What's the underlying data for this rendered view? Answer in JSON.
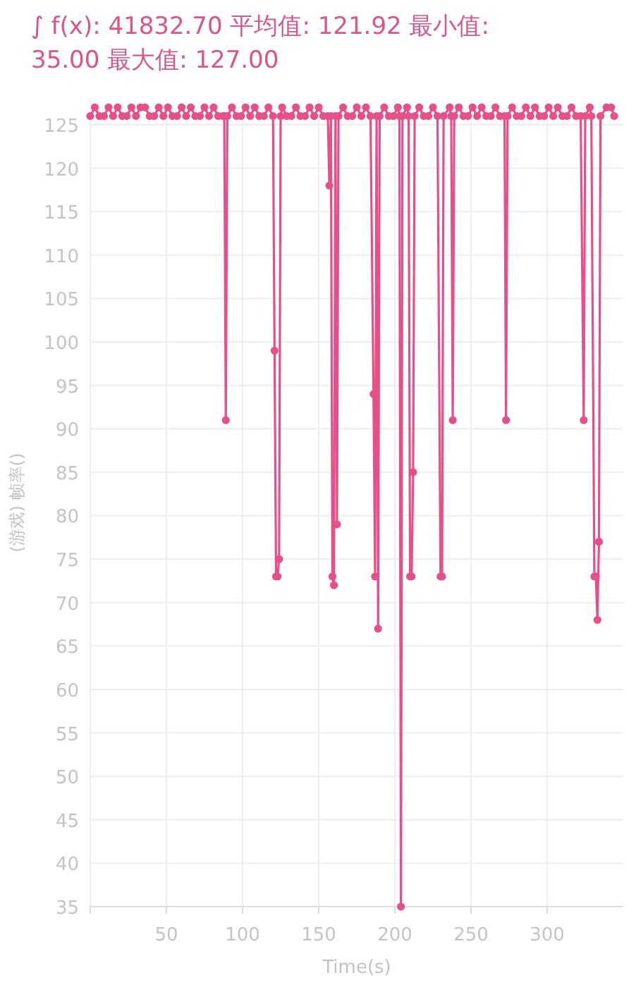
{
  "chart_data": {
    "type": "line",
    "title": "∫ f(x): 41832.70 平均值: 121.92 最小值: 35.00 最大值: 127.00",
    "xlabel": "Time(s)",
    "ylabel": "(游戏) 帧率()",
    "xlim": [
      0,
      350
    ],
    "xticks": [
      {
        "value": 0,
        "label": null
      },
      50,
      100,
      150,
      200,
      250,
      300
    ],
    "ylim": [
      35,
      128
    ],
    "yticks": [
      35,
      40,
      45,
      50,
      55,
      60,
      65,
      70,
      75,
      80,
      85,
      90,
      95,
      100,
      105,
      110,
      115,
      120,
      125
    ],
    "grid": true,
    "marker": "circle",
    "line_style": "solid",
    "series": [
      {
        "color": "#e6508a",
        "x": [
          0,
          3,
          6,
          9,
          12,
          15,
          18,
          21,
          24,
          27,
          30,
          33,
          36,
          39,
          42,
          45,
          48,
          51,
          54,
          57,
          60,
          63,
          66,
          69,
          72,
          75,
          78,
          81,
          84,
          87,
          88,
          89,
          90,
          93,
          96,
          99,
          102,
          105,
          108,
          111,
          114,
          117,
          120,
          121,
          122,
          123,
          124,
          125,
          126,
          129,
          132,
          135,
          138,
          141,
          144,
          147,
          150,
          153,
          156,
          157,
          158,
          159,
          160,
          161,
          162,
          163,
          166,
          169,
          172,
          175,
          178,
          181,
          184,
          186,
          187,
          188,
          189,
          190,
          193,
          196,
          199,
          202,
          203,
          204,
          205,
          208,
          209,
          210,
          211,
          212,
          213,
          216,
          219,
          222,
          225,
          228,
          230,
          231,
          232,
          236,
          237,
          238,
          239,
          242,
          245,
          248,
          251,
          254,
          257,
          260,
          263,
          266,
          269,
          272,
          273,
          274,
          277,
          280,
          283,
          286,
          289,
          292,
          295,
          298,
          301,
          304,
          307,
          310,
          313,
          316,
          319,
          322,
          324,
          325,
          328,
          329,
          331,
          332,
          333,
          334,
          335,
          339,
          342,
          344
        ],
        "values": [
          126,
          127,
          126,
          126,
          127,
          126,
          127,
          126,
          126,
          127,
          126,
          127,
          127,
          126,
          126,
          127,
          126,
          127,
          126,
          126,
          127,
          126,
          127,
          126,
          126,
          127,
          126,
          127,
          126,
          126,
          126,
          91,
          126,
          127,
          126,
          126,
          127,
          126,
          127,
          126,
          126,
          127,
          126,
          99,
          73,
          73,
          75,
          126,
          127,
          126,
          126,
          127,
          126,
          126,
          127,
          126,
          127,
          126,
          126,
          118,
          126,
          73,
          72,
          126,
          79,
          126,
          127,
          126,
          126,
          127,
          126,
          127,
          126,
          94,
          73,
          126,
          67,
          126,
          127,
          126,
          126,
          127,
          126,
          35,
          126,
          127,
          126,
          73,
          73,
          85,
          126,
          127,
          126,
          126,
          127,
          126,
          73,
          73,
          126,
          127,
          126,
          91,
          126,
          127,
          126,
          126,
          127,
          126,
          127,
          126,
          126,
          127,
          126,
          126,
          91,
          126,
          127,
          126,
          126,
          127,
          126,
          127,
          126,
          126,
          127,
          126,
          127,
          126,
          126,
          127,
          126,
          126,
          91,
          126,
          127,
          126,
          73,
          73,
          68,
          77,
          126,
          127,
          127,
          126
        ]
      }
    ]
  }
}
